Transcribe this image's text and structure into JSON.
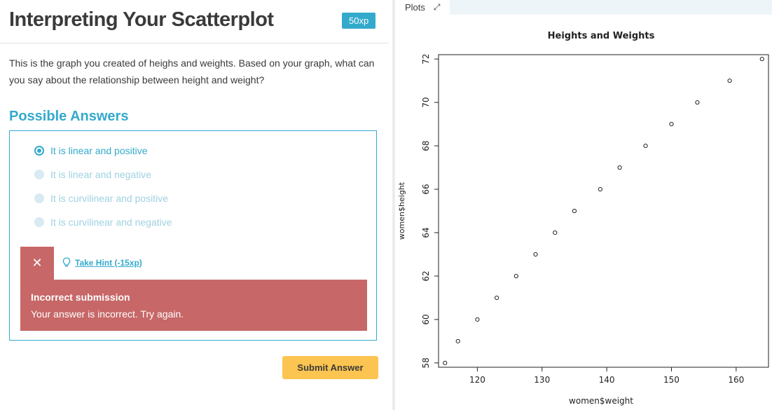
{
  "exercise": {
    "title": "Interpreting Your Scatterplot",
    "xp_badge": "50xp",
    "question": "This is the graph you created of heighs and weights. Based on your graph, what can you say about the relationship between height and weight?",
    "possible_answers_title": "Possible Answers",
    "options": [
      {
        "label": "It is linear and positive",
        "selected": true
      },
      {
        "label": "It is linear and negative",
        "selected": false
      },
      {
        "label": "It is curvilinear and positive",
        "selected": false
      },
      {
        "label": "It is curvilinear and negative",
        "selected": false
      }
    ],
    "close_symbol": "✕",
    "hint_label": "Take Hint (-15xp)",
    "feedback": {
      "title": "Incorrect submission",
      "message": "Your answer is incorrect. Try again."
    },
    "submit_label": "Submit Answer"
  },
  "plots_panel": {
    "tab_label": "Plots",
    "expand_icon": "expand-icon"
  },
  "colors": {
    "accent": "#33aacc",
    "error": "#c76767",
    "submit": "#fcc450"
  },
  "chart_data": {
    "type": "scatter",
    "title": "Heights and Weights",
    "xlabel": "women$weight",
    "ylabel": "women$height",
    "x": [
      115,
      117,
      120,
      123,
      126,
      129,
      132,
      135,
      139,
      142,
      146,
      150,
      154,
      159,
      164
    ],
    "y": [
      58,
      59,
      60,
      61,
      62,
      63,
      64,
      65,
      66,
      67,
      68,
      69,
      70,
      71,
      72
    ],
    "xlim": [
      114,
      165
    ],
    "ylim": [
      57.8,
      72.2
    ],
    "xticks": [
      120,
      130,
      140,
      150,
      160
    ],
    "yticks": [
      58,
      60,
      62,
      64,
      66,
      68,
      70,
      72
    ],
    "marker": "open-circle",
    "grid": false
  }
}
